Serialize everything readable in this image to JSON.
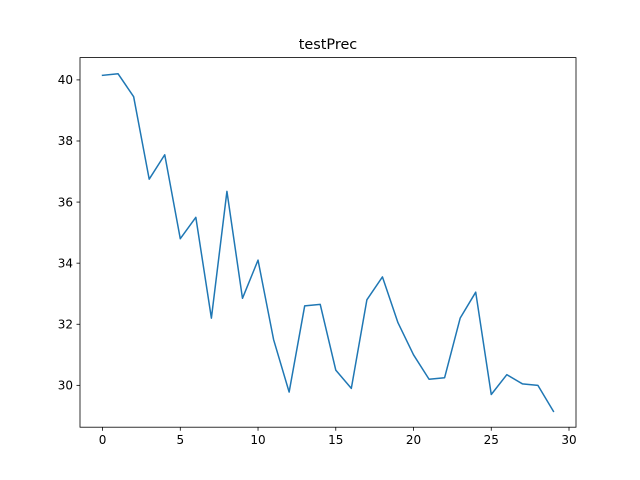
{
  "chart_data": {
    "type": "line",
    "title": "testPrec",
    "xlabel": "",
    "ylabel": "",
    "xlim": [
      -1.45,
      30.45
    ],
    "ylim": [
      28.63,
      40.73
    ],
    "xticks": [
      0,
      5,
      10,
      15,
      20,
      25,
      30
    ],
    "yticks": [
      30,
      32,
      34,
      36,
      38,
      40
    ],
    "grid": false,
    "color": "#1f77b4",
    "series": [
      {
        "x": [
          0,
          1,
          2,
          3,
          4,
          5,
          6,
          7,
          8,
          9,
          10,
          11,
          12,
          13,
          14,
          15,
          16,
          17,
          18,
          19,
          20,
          21,
          22,
          23,
          24,
          25,
          26,
          27,
          28,
          29
        ],
        "values": [
          40.15,
          40.2,
          39.45,
          36.75,
          37.55,
          34.8,
          35.5,
          32.2,
          36.35,
          32.85,
          34.1,
          31.5,
          29.78,
          32.6,
          32.65,
          30.5,
          29.9,
          32.8,
          33.55,
          32.05,
          31.0,
          30.2,
          30.25,
          32.2,
          33.05,
          29.7,
          30.35,
          30.05,
          30.0,
          29.15
        ]
      }
    ]
  }
}
